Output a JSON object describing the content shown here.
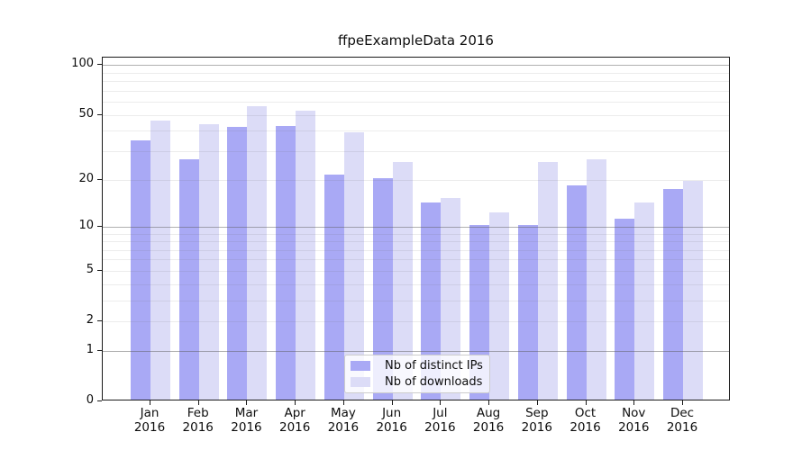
{
  "title": "ffpeExampleData 2016",
  "legend": {
    "items": [
      {
        "label": "Nb of distinct IPs",
        "color": "#a9a9f5"
      },
      {
        "label": "Nb of downloads",
        "color": "#dcdcf7"
      }
    ]
  },
  "chart_data": {
    "type": "bar",
    "title": "ffpeExampleData 2016",
    "xlabel": "",
    "ylabel": "",
    "scale": "log10(1+y)",
    "categories": [
      "Jan",
      "Feb",
      "Mar",
      "Apr",
      "May",
      "Jun",
      "Jul",
      "Aug",
      "Sep",
      "Oct",
      "Nov",
      "Dec"
    ],
    "year_label": "2016",
    "series": [
      {
        "name": "Nb of distinct IPs",
        "color": "#a9a9f5",
        "values": [
          34,
          26,
          41,
          42,
          21,
          20,
          14,
          10,
          10,
          18,
          11,
          17
        ]
      },
      {
        "name": "Nb of downloads",
        "color": "#dcdcf7",
        "values": [
          45,
          43,
          55,
          52,
          38,
          25,
          15,
          12,
          25,
          26,
          14,
          19
        ]
      }
    ],
    "y_ticks": [
      100,
      50,
      20,
      10,
      5,
      2,
      1,
      0
    ],
    "y_major_gridlines": [
      1,
      10,
      100
    ],
    "y_minor_gridlines": [
      2,
      3,
      4,
      5,
      6,
      7,
      8,
      9,
      20,
      30,
      40,
      50,
      60,
      70,
      80,
      90
    ],
    "ylim": [
      0,
      110
    ],
    "grid": true,
    "legend_position": "lower center"
  }
}
